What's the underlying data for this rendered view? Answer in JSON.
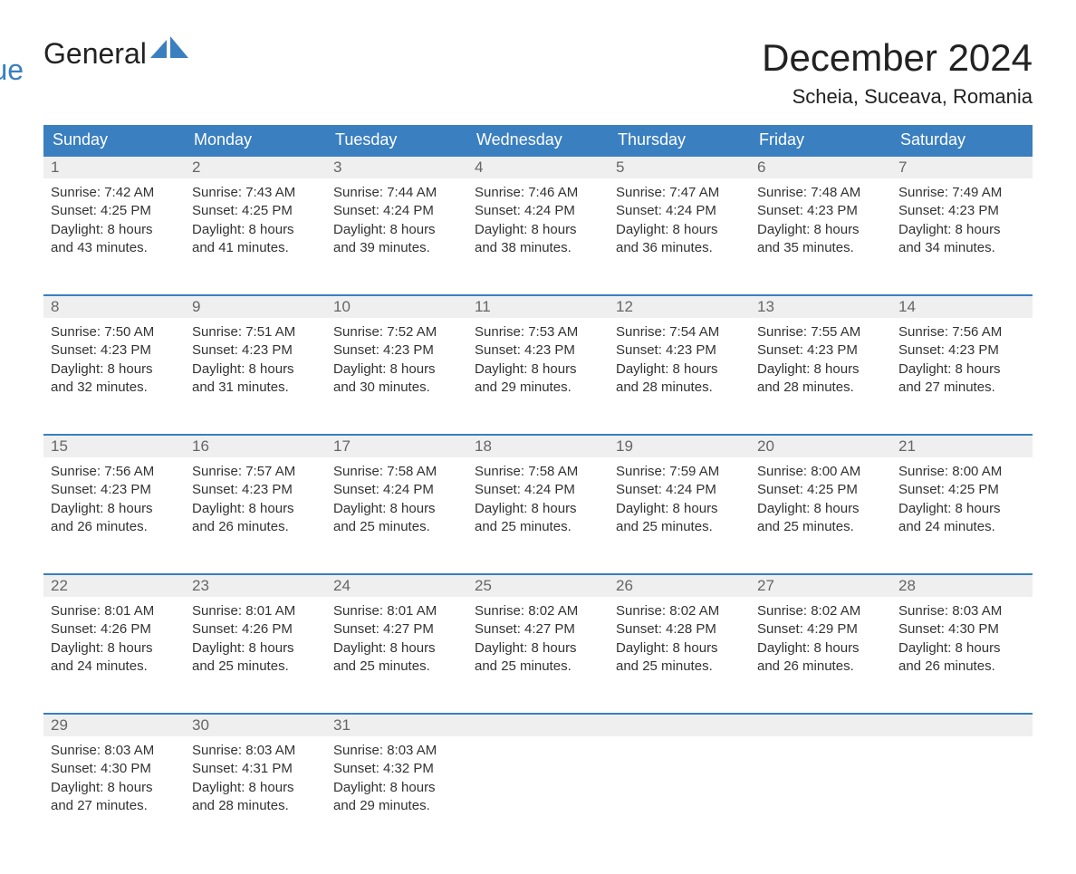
{
  "logo": {
    "text1": "General",
    "text2": "Blue"
  },
  "title": "December 2024",
  "location": "Scheia, Suceava, Romania",
  "colors": {
    "header_bg": "#3a7fc0",
    "header_text": "#ffffff",
    "daynum_bg": "#efefef",
    "daynum_text": "#666666",
    "body_text": "#333333",
    "rule": "#3a7fc0"
  },
  "day_labels": [
    "Sunday",
    "Monday",
    "Tuesday",
    "Wednesday",
    "Thursday",
    "Friday",
    "Saturday"
  ],
  "weeks": [
    [
      {
        "n": "1",
        "sunrise": "7:42 AM",
        "sunset": "4:25 PM",
        "daylight": "8 hours and 43 minutes."
      },
      {
        "n": "2",
        "sunrise": "7:43 AM",
        "sunset": "4:25 PM",
        "daylight": "8 hours and 41 minutes."
      },
      {
        "n": "3",
        "sunrise": "7:44 AM",
        "sunset": "4:24 PM",
        "daylight": "8 hours and 39 minutes."
      },
      {
        "n": "4",
        "sunrise": "7:46 AM",
        "sunset": "4:24 PM",
        "daylight": "8 hours and 38 minutes."
      },
      {
        "n": "5",
        "sunrise": "7:47 AM",
        "sunset": "4:24 PM",
        "daylight": "8 hours and 36 minutes."
      },
      {
        "n": "6",
        "sunrise": "7:48 AM",
        "sunset": "4:23 PM",
        "daylight": "8 hours and 35 minutes."
      },
      {
        "n": "7",
        "sunrise": "7:49 AM",
        "sunset": "4:23 PM",
        "daylight": "8 hours and 34 minutes."
      }
    ],
    [
      {
        "n": "8",
        "sunrise": "7:50 AM",
        "sunset": "4:23 PM",
        "daylight": "8 hours and 32 minutes."
      },
      {
        "n": "9",
        "sunrise": "7:51 AM",
        "sunset": "4:23 PM",
        "daylight": "8 hours and 31 minutes."
      },
      {
        "n": "10",
        "sunrise": "7:52 AM",
        "sunset": "4:23 PM",
        "daylight": "8 hours and 30 minutes."
      },
      {
        "n": "11",
        "sunrise": "7:53 AM",
        "sunset": "4:23 PM",
        "daylight": "8 hours and 29 minutes."
      },
      {
        "n": "12",
        "sunrise": "7:54 AM",
        "sunset": "4:23 PM",
        "daylight": "8 hours and 28 minutes."
      },
      {
        "n": "13",
        "sunrise": "7:55 AM",
        "sunset": "4:23 PM",
        "daylight": "8 hours and 28 minutes."
      },
      {
        "n": "14",
        "sunrise": "7:56 AM",
        "sunset": "4:23 PM",
        "daylight": "8 hours and 27 minutes."
      }
    ],
    [
      {
        "n": "15",
        "sunrise": "7:56 AM",
        "sunset": "4:23 PM",
        "daylight": "8 hours and 26 minutes."
      },
      {
        "n": "16",
        "sunrise": "7:57 AM",
        "sunset": "4:23 PM",
        "daylight": "8 hours and 26 minutes."
      },
      {
        "n": "17",
        "sunrise": "7:58 AM",
        "sunset": "4:24 PM",
        "daylight": "8 hours and 25 minutes."
      },
      {
        "n": "18",
        "sunrise": "7:58 AM",
        "sunset": "4:24 PM",
        "daylight": "8 hours and 25 minutes."
      },
      {
        "n": "19",
        "sunrise": "7:59 AM",
        "sunset": "4:24 PM",
        "daylight": "8 hours and 25 minutes."
      },
      {
        "n": "20",
        "sunrise": "8:00 AM",
        "sunset": "4:25 PM",
        "daylight": "8 hours and 25 minutes."
      },
      {
        "n": "21",
        "sunrise": "8:00 AM",
        "sunset": "4:25 PM",
        "daylight": "8 hours and 24 minutes."
      }
    ],
    [
      {
        "n": "22",
        "sunrise": "8:01 AM",
        "sunset": "4:26 PM",
        "daylight": "8 hours and 24 minutes."
      },
      {
        "n": "23",
        "sunrise": "8:01 AM",
        "sunset": "4:26 PM",
        "daylight": "8 hours and 25 minutes."
      },
      {
        "n": "24",
        "sunrise": "8:01 AM",
        "sunset": "4:27 PM",
        "daylight": "8 hours and 25 minutes."
      },
      {
        "n": "25",
        "sunrise": "8:02 AM",
        "sunset": "4:27 PM",
        "daylight": "8 hours and 25 minutes."
      },
      {
        "n": "26",
        "sunrise": "8:02 AM",
        "sunset": "4:28 PM",
        "daylight": "8 hours and 25 minutes."
      },
      {
        "n": "27",
        "sunrise": "8:02 AM",
        "sunset": "4:29 PM",
        "daylight": "8 hours and 26 minutes."
      },
      {
        "n": "28",
        "sunrise": "8:03 AM",
        "sunset": "4:30 PM",
        "daylight": "8 hours and 26 minutes."
      }
    ],
    [
      {
        "n": "29",
        "sunrise": "8:03 AM",
        "sunset": "4:30 PM",
        "daylight": "8 hours and 27 minutes."
      },
      {
        "n": "30",
        "sunrise": "8:03 AM",
        "sunset": "4:31 PM",
        "daylight": "8 hours and 28 minutes."
      },
      {
        "n": "31",
        "sunrise": "8:03 AM",
        "sunset": "4:32 PM",
        "daylight": "8 hours and 29 minutes."
      },
      null,
      null,
      null,
      null
    ]
  ],
  "labels": {
    "sunrise": "Sunrise: ",
    "sunset": "Sunset: ",
    "daylight": "Daylight: "
  }
}
